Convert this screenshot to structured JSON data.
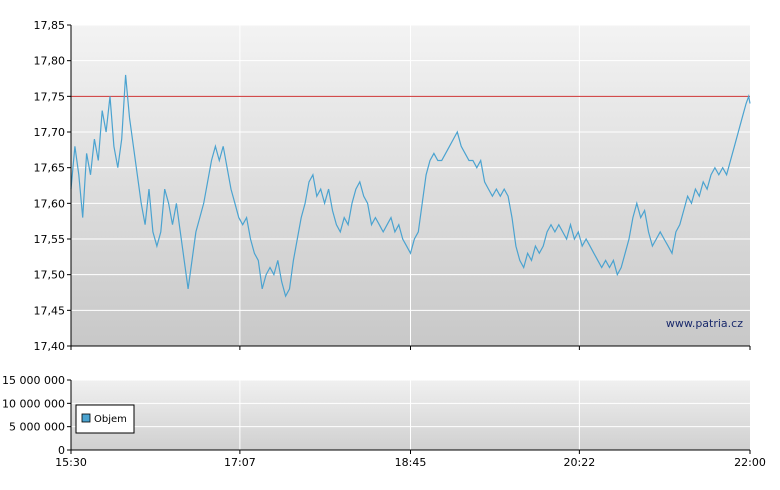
{
  "watermark": "www.patria.cz",
  "chart_data": [
    {
      "type": "line",
      "name": "price",
      "xlim": [
        "15:30",
        "22:00"
      ],
      "ylim": [
        17.4,
        17.85
      ],
      "y_ticks": [
        "17,40",
        "17,45",
        "17,50",
        "17,55",
        "17,60",
        "17,65",
        "17,70",
        "17,75",
        "17,80",
        "17,85"
      ],
      "grid": true,
      "reference_line": {
        "value": 17.75,
        "color": "#cc3333"
      },
      "line_color": "#4ba3d0",
      "series": [
        {
          "points": [
            [
              0.0,
              17.62
            ],
            [
              1.5,
              17.68
            ],
            [
              3.0,
              17.64
            ],
            [
              4.5,
              17.58
            ],
            [
              6.0,
              17.67
            ],
            [
              7.5,
              17.64
            ],
            [
              9.0,
              17.69
            ],
            [
              10.5,
              17.66
            ],
            [
              12.0,
              17.73
            ],
            [
              13.5,
              17.7
            ],
            [
              15.0,
              17.75
            ],
            [
              16.5,
              17.68
            ],
            [
              18.0,
              17.65
            ],
            [
              19.5,
              17.69
            ],
            [
              21.0,
              17.78
            ],
            [
              22.5,
              17.72
            ],
            [
              24.0,
              17.68
            ],
            [
              25.5,
              17.64
            ],
            [
              27.0,
              17.6
            ],
            [
              28.5,
              17.57
            ],
            [
              30.0,
              17.62
            ],
            [
              31.5,
              17.56
            ],
            [
              33.0,
              17.54
            ],
            [
              34.5,
              17.56
            ],
            [
              36.0,
              17.62
            ],
            [
              37.5,
              17.6
            ],
            [
              39.0,
              17.57
            ],
            [
              40.5,
              17.6
            ],
            [
              42.0,
              17.56
            ],
            [
              43.5,
              17.52
            ],
            [
              45.0,
              17.48
            ],
            [
              46.5,
              17.52
            ],
            [
              48.0,
              17.56
            ],
            [
              49.5,
              17.58
            ],
            [
              51.0,
              17.6
            ],
            [
              52.5,
              17.63
            ],
            [
              54.0,
              17.66
            ],
            [
              55.5,
              17.68
            ],
            [
              57.0,
              17.66
            ],
            [
              58.5,
              17.68
            ],
            [
              60.0,
              17.65
            ],
            [
              61.5,
              17.62
            ],
            [
              63.0,
              17.6
            ],
            [
              64.5,
              17.58
            ],
            [
              66.0,
              17.57
            ],
            [
              67.5,
              17.58
            ],
            [
              69.0,
              17.55
            ],
            [
              70.5,
              17.53
            ],
            [
              72.0,
              17.52
            ],
            [
              73.5,
              17.48
            ],
            [
              75.0,
              17.5
            ],
            [
              76.5,
              17.51
            ],
            [
              78.0,
              17.5
            ],
            [
              79.5,
              17.52
            ],
            [
              81.0,
              17.49
            ],
            [
              82.5,
              17.47
            ],
            [
              84.0,
              17.48
            ],
            [
              85.5,
              17.52
            ],
            [
              87.0,
              17.55
            ],
            [
              88.5,
              17.58
            ],
            [
              90.0,
              17.6
            ],
            [
              91.5,
              17.63
            ],
            [
              93.0,
              17.64
            ],
            [
              94.5,
              17.61
            ],
            [
              96.0,
              17.62
            ],
            [
              97.5,
              17.6
            ],
            [
              99.0,
              17.62
            ],
            [
              100.5,
              17.59
            ],
            [
              102.0,
              17.57
            ],
            [
              103.5,
              17.56
            ],
            [
              105.0,
              17.58
            ],
            [
              106.5,
              17.57
            ],
            [
              108.0,
              17.6
            ],
            [
              109.5,
              17.62
            ],
            [
              111.0,
              17.63
            ],
            [
              112.5,
              17.61
            ],
            [
              114.0,
              17.6
            ],
            [
              115.5,
              17.57
            ],
            [
              117.0,
              17.58
            ],
            [
              118.5,
              17.57
            ],
            [
              120.0,
              17.56
            ],
            [
              121.5,
              17.57
            ],
            [
              123.0,
              17.58
            ],
            [
              124.5,
              17.56
            ],
            [
              126.0,
              17.57
            ],
            [
              127.5,
              17.55
            ],
            [
              129.0,
              17.54
            ],
            [
              130.5,
              17.53
            ],
            [
              132.0,
              17.55
            ],
            [
              133.5,
              17.56
            ],
            [
              135.0,
              17.6
            ],
            [
              136.5,
              17.64
            ],
            [
              138.0,
              17.66
            ],
            [
              139.5,
              17.67
            ],
            [
              141.0,
              17.66
            ],
            [
              142.5,
              17.66
            ],
            [
              144.0,
              17.67
            ],
            [
              145.5,
              17.68
            ],
            [
              147.0,
              17.69
            ],
            [
              148.5,
              17.7
            ],
            [
              150.0,
              17.68
            ],
            [
              151.5,
              17.67
            ],
            [
              153.0,
              17.66
            ],
            [
              154.5,
              17.66
            ],
            [
              156.0,
              17.65
            ],
            [
              157.5,
              17.66
            ],
            [
              159.0,
              17.63
            ],
            [
              160.5,
              17.62
            ],
            [
              162.0,
              17.61
            ],
            [
              163.5,
              17.62
            ],
            [
              165.0,
              17.61
            ],
            [
              166.5,
              17.62
            ],
            [
              168.0,
              17.61
            ],
            [
              169.5,
              17.58
            ],
            [
              171.0,
              17.54
            ],
            [
              172.5,
              17.52
            ],
            [
              174.0,
              17.51
            ],
            [
              175.5,
              17.53
            ],
            [
              177.0,
              17.52
            ],
            [
              178.5,
              17.54
            ],
            [
              180.0,
              17.53
            ],
            [
              181.5,
              17.54
            ],
            [
              183.0,
              17.56
            ],
            [
              184.5,
              17.57
            ],
            [
              186.0,
              17.56
            ],
            [
              187.5,
              17.57
            ],
            [
              189.0,
              17.56
            ],
            [
              190.5,
              17.55
            ],
            [
              192.0,
              17.57
            ],
            [
              193.5,
              17.55
            ],
            [
              195.0,
              17.56
            ],
            [
              196.5,
              17.54
            ],
            [
              198.0,
              17.55
            ],
            [
              199.5,
              17.54
            ],
            [
              201.0,
              17.53
            ],
            [
              202.5,
              17.52
            ],
            [
              204.0,
              17.51
            ],
            [
              205.5,
              17.52
            ],
            [
              207.0,
              17.51
            ],
            [
              208.5,
              17.52
            ],
            [
              210.0,
              17.5
            ],
            [
              211.5,
              17.51
            ],
            [
              213.0,
              17.53
            ],
            [
              214.5,
              17.55
            ],
            [
              216.0,
              17.58
            ],
            [
              217.5,
              17.6
            ],
            [
              219.0,
              17.58
            ],
            [
              220.5,
              17.59
            ],
            [
              222.0,
              17.56
            ],
            [
              223.5,
              17.54
            ],
            [
              225.0,
              17.55
            ],
            [
              226.5,
              17.56
            ],
            [
              228.0,
              17.55
            ],
            [
              229.5,
              17.54
            ],
            [
              231.0,
              17.53
            ],
            [
              232.5,
              17.56
            ],
            [
              234.0,
              17.57
            ],
            [
              235.5,
              17.59
            ],
            [
              237.0,
              17.61
            ],
            [
              238.5,
              17.6
            ],
            [
              240.0,
              17.62
            ],
            [
              241.5,
              17.61
            ],
            [
              243.0,
              17.63
            ],
            [
              244.5,
              17.62
            ],
            [
              246.0,
              17.64
            ],
            [
              247.5,
              17.65
            ],
            [
              249.0,
              17.64
            ],
            [
              250.5,
              17.65
            ],
            [
              252.0,
              17.64
            ],
            [
              253.5,
              17.66
            ],
            [
              255.0,
              17.68
            ],
            [
              256.5,
              17.7
            ],
            [
              258.0,
              17.72
            ],
            [
              259.5,
              17.74
            ],
            [
              260.5,
              17.75
            ],
            [
              261.0,
              17.74
            ]
          ]
        }
      ]
    },
    {
      "type": "bar",
      "name": "volume",
      "xlim": [
        "15:30",
        "22:00"
      ],
      "ylim": [
        0,
        15000000
      ],
      "y_ticks": [
        "0",
        "5 000 000",
        "10 000 000",
        "15 000 000"
      ],
      "x_ticks": [
        "15:30",
        "17:07",
        "18:45",
        "20:22",
        "22:00"
      ],
      "grid": true,
      "legend": {
        "label": "Objem",
        "color": "#4ba3d0",
        "position": "bottom-left"
      },
      "series": []
    }
  ]
}
